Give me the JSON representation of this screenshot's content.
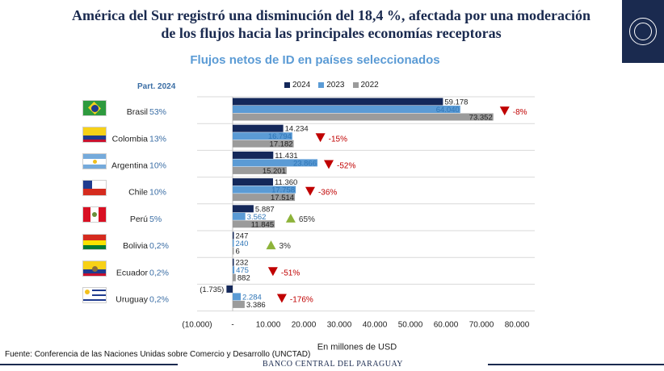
{
  "header": {
    "title_line1": "América del Sur registró una disminución del 18,4 %, afectada por una moderación",
    "title_line2": "de los flujos hacia las principales economías receptoras",
    "subtitle": "Flujos netos de ID en países seleccionados",
    "part_label": "Part. 2024"
  },
  "logo": {
    "icon": "bcp-seal-icon",
    "background": "#1a2a4f"
  },
  "chart_data": {
    "type": "bar",
    "orientation": "horizontal",
    "categories": [
      "Brasil",
      "Colombia",
      "Argentina",
      "Chile",
      "Perú",
      "Bolivia",
      "Ecuador",
      "Uruguay"
    ],
    "shares": [
      "53%",
      "13%",
      "10%",
      "10%",
      "5%",
      "0,2%",
      "0,2%",
      "0,2%"
    ],
    "series": [
      {
        "name": "2024",
        "color": "#14285a",
        "values": [
          59178,
          14234,
          11431,
          11360,
          5887,
          247,
          232,
          -1735
        ],
        "labels": [
          "59.178",
          "14.234",
          "11.431",
          "11.360",
          "5.887",
          "247",
          "232",
          "(1.735)"
        ]
      },
      {
        "name": "2023",
        "color": "#5b9bd5",
        "values": [
          64040,
          16794,
          23866,
          17758,
          3562,
          240,
          475,
          2284
        ],
        "labels": [
          "64.040",
          "16.794",
          "23.866",
          "17.758",
          "3.562",
          "240",
          "475",
          "2.284"
        ]
      },
      {
        "name": "2022",
        "color": "#9b9b9b",
        "values": [
          73352,
          17182,
          15201,
          17514,
          11845,
          6,
          882,
          3386
        ],
        "labels": [
          "73.352",
          "17.182",
          "15.201",
          "17.514",
          "11.845",
          "6",
          "882",
          "3.386"
        ]
      }
    ],
    "changes": [
      {
        "label": "-8%",
        "direction": "down"
      },
      {
        "label": "-15%",
        "direction": "down"
      },
      {
        "label": "-52%",
        "direction": "down"
      },
      {
        "label": "-36%",
        "direction": "down"
      },
      {
        "label": "65%",
        "direction": "up"
      },
      {
        "label": "3%",
        "direction": "up"
      },
      {
        "label": "-51%",
        "direction": "down"
      },
      {
        "label": "-176%",
        "direction": "down"
      }
    ],
    "xlabel": "En millones de USD",
    "xlim": [
      -10000,
      80000
    ],
    "xticks": [
      -10000,
      0,
      10000,
      20000,
      30000,
      40000,
      50000,
      60000,
      70000,
      80000
    ],
    "xtick_labels": [
      "(10.000)",
      "-",
      "10.000",
      "20.000",
      "30.000",
      "40.000",
      "50.000",
      "60.000",
      "70.000",
      "80.000"
    ],
    "colors": {
      "down": "#c00000",
      "up": "#8db33a",
      "share": "#3b6ea5"
    }
  },
  "footer": {
    "source": "Fuente: Conferencia de las Naciones Unidas sobre Comercio y Desarrollo (UNCTAD)",
    "bank_name": "BANCO CENTRAL DEL PARAGUAY"
  }
}
